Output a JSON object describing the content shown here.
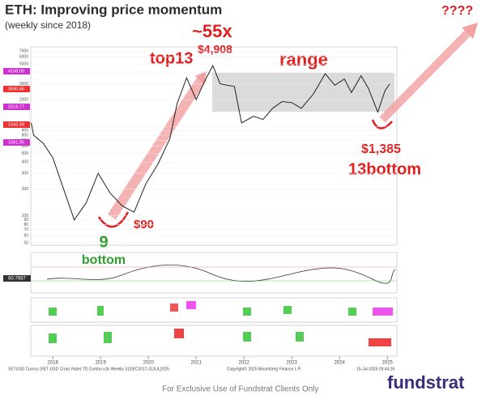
{
  "chart_data": {
    "type": "line",
    "title": "ETH: Improving price momentum",
    "subtitle": "(weekly since 2018)",
    "log_scale": true,
    "grid": true,
    "x": [
      2018.05,
      2018.1,
      2018.3,
      2018.5,
      2018.7,
      2018.95,
      2019.2,
      2019.45,
      2019.7,
      2019.95,
      2020.2,
      2020.45,
      2020.7,
      2020.95,
      2021.1,
      2021.3,
      2021.5,
      2021.7,
      2021.85,
      2022.0,
      2022.3,
      2022.45,
      2022.7,
      2022.9,
      2023.1,
      2023.3,
      2023.5,
      2023.7,
      2023.95,
      2024.2,
      2024.4,
      2024.6,
      2024.75,
      2024.95,
      2025.1,
      2025.3,
      2025.45,
      2025.55
    ],
    "series": [
      {
        "name": "XETUSD Curncy",
        "color": "#222222",
        "values": [
          1100,
          800,
          650,
          450,
          220,
          90,
          140,
          300,
          180,
          130,
          110,
          230,
          380,
          730,
          1800,
          3500,
          2000,
          3400,
          4800,
          3000,
          2800,
          1100,
          1300,
          1200,
          1600,
          1900,
          1850,
          1600,
          2300,
          3900,
          2900,
          3400,
          2400,
          3700,
          2700,
          1450,
          2500,
          3000
        ]
      }
    ],
    "xlim": [
      2018.04,
      2025.7
    ],
    "xticks": [
      {
        "value": 2018.5,
        "label": "2018"
      },
      {
        "value": 2019.5,
        "label": "2019"
      },
      {
        "value": 2020.5,
        "label": "2020"
      },
      {
        "value": 2021.5,
        "label": "2021"
      },
      {
        "value": 2022.5,
        "label": "2022"
      },
      {
        "value": 2023.5,
        "label": "2023"
      },
      {
        "value": 2024.5,
        "label": "2024"
      },
      {
        "value": 2025.5,
        "label": "2025"
      }
    ],
    "ylim": [
      50,
      7000
    ],
    "yticks": [
      50,
      60,
      70,
      80,
      90,
      100,
      200,
      300,
      400,
      500,
      600,
      700,
      800,
      900,
      1000,
      2000,
      3000,
      4000,
      5000,
      6000,
      7000
    ],
    "price_tags": [
      "4108.00",
      "3040.46",
      "2216.77",
      "1542.49",
      "1061.95"
    ],
    "rsi_tag": "60.7687",
    "annotations": {
      "multiple": "~55x",
      "top": "top13",
      "top_price": "$4,908",
      "range": "range",
      "low_price": "$1,385",
      "bottom13": "13bottom",
      "bottom9_num": "9",
      "bottom9_word": "bottom",
      "low_2018": "$90",
      "target": "????"
    },
    "source": "XETUSD Curncy (XET-USD Cross Rate) TD Combo v1b  Weekly 31DEC2017-31JUL2025",
    "copyright": "Copyright© 2025 Bloomberg Finance L.P.",
    "timestamp": "15-Jul-2025 09:44:26",
    "footer": "For Exclusive Use of Fundstrat Clients Only",
    "brand": "fundstrat"
  }
}
